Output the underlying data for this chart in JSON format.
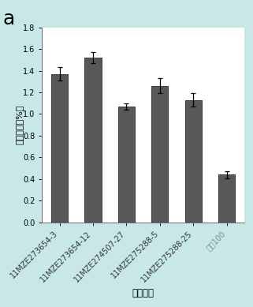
{
  "categories": [
    "11MZE273654-3",
    "11MZE273654-12",
    "11MZE274507-27",
    "11MZE275288-5",
    "11MZE275288-25",
    "中烟100"
  ],
  "values": [
    1.37,
    1.52,
    1.07,
    1.26,
    1.13,
    0.44
  ],
  "errors": [
    0.06,
    0.05,
    0.03,
    0.07,
    0.06,
    0.03
  ],
  "bar_color": "#585858",
  "bar_edgecolor": "#2a2a2a",
  "background_color": "#c8e8e8",
  "plot_bg_color": "#ffffff",
  "title": "a",
  "ylabel": "烟碱含量（%）",
  "xlabel": "品种编号",
  "ylim": [
    0,
    1.8
  ],
  "yticks": [
    0,
    0.2,
    0.4,
    0.6,
    0.8,
    1.0,
    1.2,
    1.4,
    1.6,
    1.8
  ],
  "ylabel_fontsize": 8,
  "xlabel_fontsize": 8.5,
  "tick_fontsize": 7,
  "title_fontsize": 18,
  "capsize": 2,
  "bar_width": 0.5,
  "xtick_colors": [
    "#333333",
    "#333333",
    "#333333",
    "#333333",
    "#333333",
    "#888888"
  ]
}
